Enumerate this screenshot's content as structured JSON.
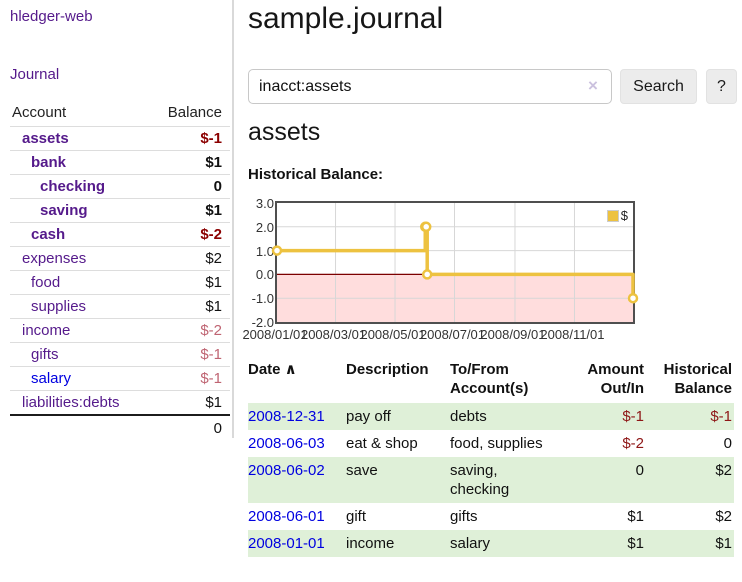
{
  "app": {
    "brand": "hledger-web",
    "nav_journal": "Journal"
  },
  "colors": {
    "link_purple": "#551a8b",
    "link_blue": "#0000e0",
    "negative_strong": "#8b0000",
    "negative_dim": "#bf6472",
    "table_negative": "#8e1616",
    "row_stripe_green": "#dff0d8",
    "chart_line_yellow": "#edc240",
    "negative_region_pink": "#ffdddd",
    "zero_line_red": "#7c0000",
    "button_gray": "#ececec"
  },
  "sidebar": {
    "headers": {
      "account": "Account",
      "balance": "Balance"
    },
    "accounts": [
      {
        "name": "assets",
        "indent": 0,
        "bold": true,
        "balance": "$-1",
        "neg": "strong"
      },
      {
        "name": "bank",
        "indent": 1,
        "bold": true,
        "balance": "$1"
      },
      {
        "name": "checking",
        "indent": 2,
        "bold": true,
        "balance": "0"
      },
      {
        "name": "saving",
        "indent": 2,
        "bold": true,
        "balance": "$1"
      },
      {
        "name": "cash",
        "indent": 1,
        "bold": true,
        "balance": "$-2",
        "neg": "strong"
      },
      {
        "name": "expenses",
        "indent": 0,
        "bold": false,
        "balance": "$2"
      },
      {
        "name": "food",
        "indent": 1,
        "bold": false,
        "balance": "$1"
      },
      {
        "name": "supplies",
        "indent": 1,
        "bold": false,
        "balance": "$1"
      },
      {
        "name": "income",
        "indent": 0,
        "bold": false,
        "balance": "$-2",
        "neg": "dim"
      },
      {
        "name": "gifts",
        "indent": 1,
        "bold": false,
        "balance": "$-1",
        "neg": "dim"
      },
      {
        "name": "salary",
        "indent": 1,
        "bold": false,
        "balance": "$-1",
        "neg": "dim",
        "link": "blue"
      },
      {
        "name": "liabilities:debts",
        "indent": 0,
        "bold": false,
        "balance": "$1"
      }
    ],
    "total": "0"
  },
  "header": {
    "title": "sample.journal"
  },
  "search": {
    "value": "inacct:assets",
    "clear_icon": "×",
    "button_label": "Search",
    "help_label": "?"
  },
  "account_page": {
    "heading": "assets",
    "chart_label": "Historical Balance:"
  },
  "chart_data": {
    "type": "line",
    "title": "Historical Balance:",
    "step": true,
    "grid": true,
    "legend_label": "$",
    "legend_position": "top-right",
    "x_range": [
      "2008-01-01",
      "2008-12-31"
    ],
    "ylim": [
      -2,
      3
    ],
    "ytick_labels": [
      "3.0",
      "2.0",
      "1.0",
      "0.0",
      "-1.0",
      "-2.0"
    ],
    "xtick_labels": [
      "2008/01/01",
      "2008/03/01",
      "2008/05/01",
      "2008/07/01",
      "2008/09/01",
      "2008/11/01"
    ],
    "series": [
      {
        "name": "$",
        "color": "#edc240",
        "points": [
          {
            "date": "2008-01-01",
            "value": 1
          },
          {
            "date": "2008-06-01",
            "value": 2
          },
          {
            "date": "2008-06-02",
            "value": 2
          },
          {
            "date": "2008-06-03",
            "value": 0
          },
          {
            "date": "2008-12-31",
            "value": -1
          }
        ]
      }
    ],
    "negative_region_fill": "#ffdddd",
    "zero_line_color": "#7c0000"
  },
  "register": {
    "columns": [
      "Date",
      "Description",
      "To/From Account(s)",
      "Amount Out/In",
      "Historical Balance"
    ],
    "sort_indicator": "∧",
    "rows": [
      {
        "date": "2008-12-31",
        "description": "pay off",
        "accounts": "debts",
        "amount": "$-1",
        "amount_neg": true,
        "balance": "$-1",
        "balance_neg": true
      },
      {
        "date": "2008-06-03",
        "description": "eat & shop",
        "accounts": "food, supplies",
        "amount": "$-2",
        "amount_neg": true,
        "balance": "0",
        "balance_neg": false
      },
      {
        "date": "2008-06-02",
        "description": "save",
        "accounts": "saving, checking",
        "amount": "0",
        "amount_neg": false,
        "balance": "$2",
        "balance_neg": false
      },
      {
        "date": "2008-06-01",
        "description": "gift",
        "accounts": "gifts",
        "amount": "$1",
        "amount_neg": false,
        "balance": "$2",
        "balance_neg": false
      },
      {
        "date": "2008-01-01",
        "description": "income",
        "accounts": "salary",
        "amount": "$1",
        "amount_neg": false,
        "balance": "$1",
        "balance_neg": false
      }
    ]
  }
}
